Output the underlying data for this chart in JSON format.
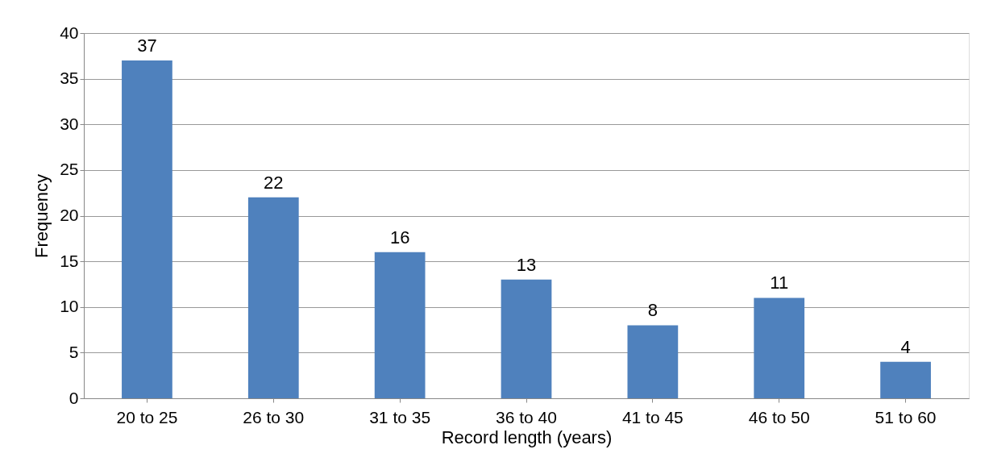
{
  "chart_data": {
    "type": "bar",
    "xlabel": "Record length (years)",
    "ylabel": "Frequency",
    "categories": [
      "20 to 25",
      "26 to 30",
      "31 to 35",
      "36 to 40",
      "41 to 45",
      "46 to 50",
      "51 to 60"
    ],
    "values": [
      37,
      22,
      16,
      13,
      8,
      11,
      4
    ],
    "color": "#4f81bd",
    "ylim": [
      0,
      40
    ],
    "yticks": [
      0,
      5,
      10,
      15,
      20,
      25,
      30,
      35,
      40
    ],
    "grid": "y",
    "data_labels": true
  }
}
